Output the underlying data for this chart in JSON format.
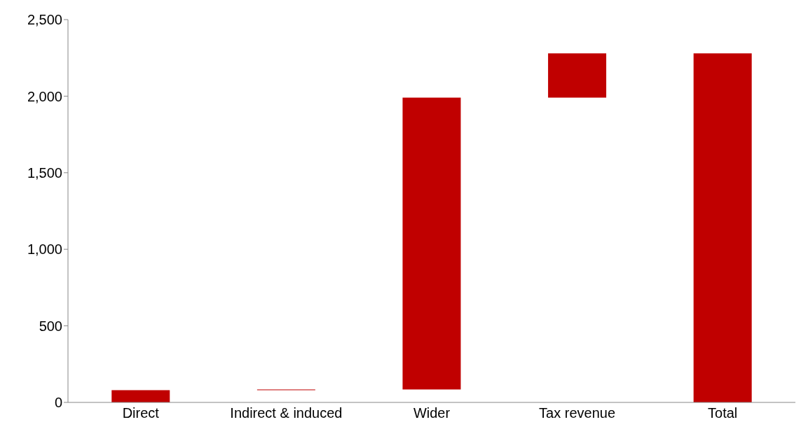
{
  "chart_data": {
    "type": "bar",
    "categories": [
      "Direct",
      "Indirect & induced",
      "Wider",
      "Tax revenue",
      "Total"
    ],
    "values": [
      80,
      5,
      1905,
      290,
      2280
    ],
    "base": [
      0,
      80,
      85,
      1990,
      0
    ],
    "color": "#c00000",
    "ylim": [
      0,
      2500
    ],
    "yticks": [
      {
        "value": 0,
        "label": "0"
      },
      {
        "value": 500,
        "label": "500"
      },
      {
        "value": 1000,
        "label": "1,000"
      },
      {
        "value": 1500,
        "label": "1,500"
      },
      {
        "value": 2000,
        "label": "2,000"
      },
      {
        "value": 2500,
        "label": "2,500"
      }
    ],
    "grid": false,
    "legend": false
  }
}
